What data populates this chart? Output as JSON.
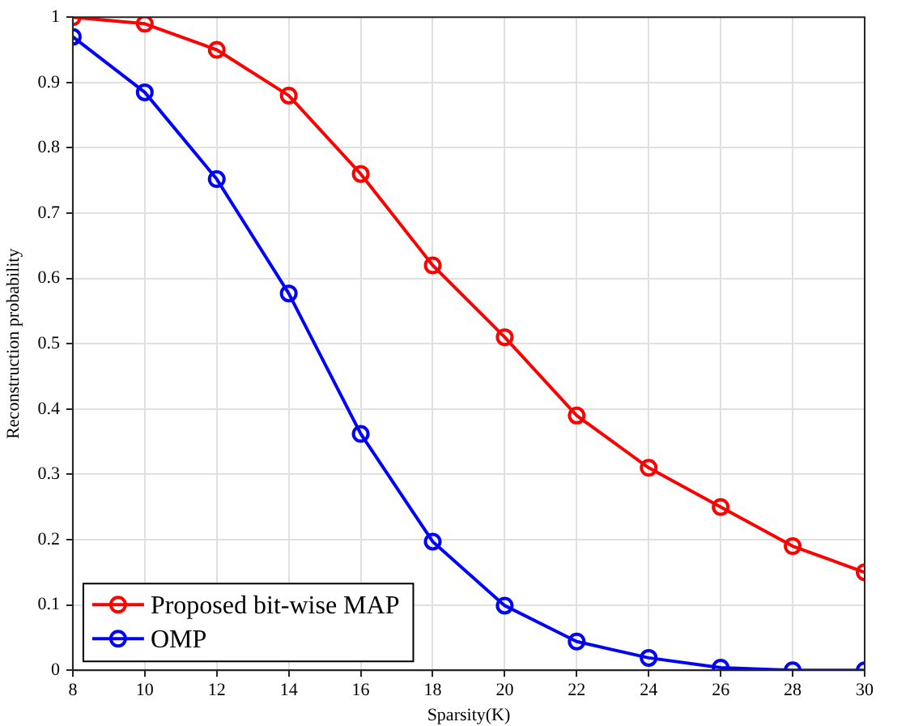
{
  "chart_data": {
    "type": "line",
    "xlabel": "Sparsity(K)",
    "ylabel": "Reconstruction probability",
    "x": [
      8,
      10,
      12,
      14,
      16,
      18,
      20,
      22,
      24,
      26,
      28,
      30
    ],
    "series": [
      {
        "name": "Proposed bit-wise MAP",
        "color": "#ff0000",
        "values": [
          1.0,
          0.99,
          0.95,
          0.88,
          0.76,
          0.62,
          0.51,
          0.39,
          0.31,
          0.25,
          0.19,
          0.15
        ]
      },
      {
        "name": "OMP",
        "color": "#0000ff",
        "values": [
          0.97,
          0.885,
          0.752,
          0.577,
          0.362,
          0.197,
          0.099,
          0.044,
          0.019,
          0.004,
          0.0,
          0.0
        ]
      }
    ],
    "xlim": [
      8,
      30
    ],
    "xticks": [
      8,
      10,
      12,
      14,
      16,
      18,
      20,
      22,
      24,
      26,
      28,
      30
    ],
    "ylim": [
      0,
      1
    ],
    "yticks": [
      0,
      0.1,
      0.2,
      0.3,
      0.4,
      0.5,
      0.6,
      0.7,
      0.8,
      0.9,
      1
    ],
    "grid": true,
    "legend": "bottom left",
    "marker": "circle",
    "line_style": "solid"
  }
}
